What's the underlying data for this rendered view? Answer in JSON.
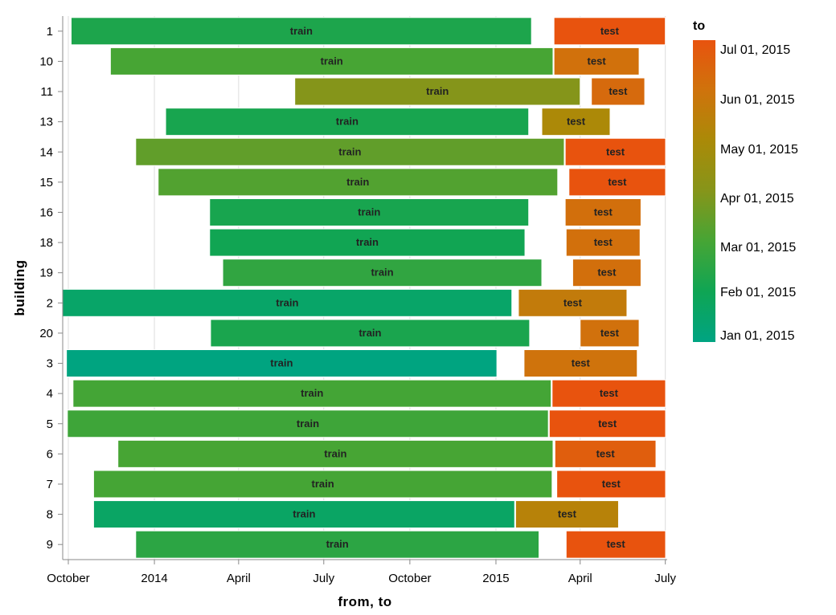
{
  "chart_data": {
    "type": "bar",
    "orientation": "horizontal-range",
    "xlabel": "from, to",
    "ylabel": "building",
    "x_axis_type": "date",
    "xlim": [
      "2013-09-25",
      "2015-07-03"
    ],
    "x_ticks": [
      {
        "date": "2013-10-01",
        "label": "October"
      },
      {
        "date": "2014-01-01",
        "label": "2014"
      },
      {
        "date": "2014-04-01",
        "label": "April"
      },
      {
        "date": "2014-07-01",
        "label": "July"
      },
      {
        "date": "2014-10-01",
        "label": "October"
      },
      {
        "date": "2015-01-01",
        "label": "2015"
      },
      {
        "date": "2015-04-01",
        "label": "April"
      },
      {
        "date": "2015-07-01",
        "label": "July"
      }
    ],
    "categories": [
      "1",
      "10",
      "11",
      "13",
      "14",
      "15",
      "16",
      "18",
      "19",
      "2",
      "20",
      "3",
      "4",
      "5",
      "6",
      "7",
      "8",
      "9"
    ],
    "color_field": "to",
    "legend": {
      "title": "to",
      "position": "right",
      "labels": [
        "Jul 01, 2015",
        "Jun 01, 2015",
        "May 01, 2015",
        "Apr 01, 2015",
        "Mar 01, 2015",
        "Feb 01, 2015",
        "Jan 01, 2015"
      ],
      "gradient_colors": [
        "#e8530e",
        "#cf730c",
        "#aa8a08",
        "#86951a",
        "#46a535",
        "#0fa554",
        "#00a482"
      ]
    },
    "grid": true,
    "bars": [
      {
        "building": "1",
        "label": "train",
        "from": "2013-10-04",
        "to": "2015-02-08"
      },
      {
        "building": "1",
        "label": "test",
        "from": "2015-03-04",
        "to": "2015-07-01"
      },
      {
        "building": "10",
        "label": "train",
        "from": "2013-11-15",
        "to": "2015-03-03"
      },
      {
        "building": "10",
        "label": "test",
        "from": "2015-03-04",
        "to": "2015-06-03"
      },
      {
        "building": "11",
        "label": "train",
        "from": "2014-05-31",
        "to": "2015-04-01"
      },
      {
        "building": "11",
        "label": "test",
        "from": "2015-04-13",
        "to": "2015-06-09"
      },
      {
        "building": "13",
        "label": "train",
        "from": "2014-01-13",
        "to": "2015-02-05"
      },
      {
        "building": "13",
        "label": "test",
        "from": "2015-02-19",
        "to": "2015-05-03"
      },
      {
        "building": "14",
        "label": "train",
        "from": "2013-12-12",
        "to": "2015-03-15"
      },
      {
        "building": "14",
        "label": "test",
        "from": "2015-03-16",
        "to": "2015-07-04"
      },
      {
        "building": "15",
        "label": "train",
        "from": "2014-01-05",
        "to": "2015-03-08"
      },
      {
        "building": "15",
        "label": "test",
        "from": "2015-03-20",
        "to": "2015-07-04"
      },
      {
        "building": "16",
        "label": "train",
        "from": "2014-03-01",
        "to": "2015-02-05"
      },
      {
        "building": "16",
        "label": "test",
        "from": "2015-03-16",
        "to": "2015-06-05"
      },
      {
        "building": "18",
        "label": "train",
        "from": "2014-03-01",
        "to": "2015-02-01"
      },
      {
        "building": "18",
        "label": "test",
        "from": "2015-03-17",
        "to": "2015-06-04"
      },
      {
        "building": "19",
        "label": "train",
        "from": "2014-03-15",
        "to": "2015-02-19"
      },
      {
        "building": "19",
        "label": "test",
        "from": "2015-03-24",
        "to": "2015-06-05"
      },
      {
        "building": "2",
        "label": "train",
        "from": "2013-09-25",
        "to": "2015-01-18"
      },
      {
        "building": "2",
        "label": "test",
        "from": "2015-01-25",
        "to": "2015-05-21"
      },
      {
        "building": "20",
        "label": "train",
        "from": "2014-03-02",
        "to": "2015-02-06"
      },
      {
        "building": "20",
        "label": "test",
        "from": "2015-04-01",
        "to": "2015-06-03"
      },
      {
        "building": "3",
        "label": "train",
        "from": "2013-09-29",
        "to": "2015-01-02"
      },
      {
        "building": "3",
        "label": "test",
        "from": "2015-01-31",
        "to": "2015-06-01"
      },
      {
        "building": "4",
        "label": "train",
        "from": "2013-10-06",
        "to": "2015-03-01"
      },
      {
        "building": "4",
        "label": "test",
        "from": "2015-03-02",
        "to": "2015-07-05"
      },
      {
        "building": "5",
        "label": "train",
        "from": "2013-09-30",
        "to": "2015-02-26"
      },
      {
        "building": "5",
        "label": "test",
        "from": "2015-02-27",
        "to": "2015-07-04"
      },
      {
        "building": "6",
        "label": "train",
        "from": "2013-11-23",
        "to": "2015-03-03"
      },
      {
        "building": "6",
        "label": "test",
        "from": "2015-03-05",
        "to": "2015-06-21"
      },
      {
        "building": "7",
        "label": "train",
        "from": "2013-10-28",
        "to": "2015-03-02"
      },
      {
        "building": "7",
        "label": "test",
        "from": "2015-03-07",
        "to": "2015-07-04"
      },
      {
        "building": "8",
        "label": "train",
        "from": "2013-10-28",
        "to": "2015-01-21"
      },
      {
        "building": "8",
        "label": "test",
        "from": "2015-01-22",
        "to": "2015-05-12"
      },
      {
        "building": "9",
        "label": "train",
        "from": "2013-12-12",
        "to": "2015-02-16"
      },
      {
        "building": "9",
        "label": "test",
        "from": "2015-03-17",
        "to": "2015-07-04"
      }
    ]
  }
}
